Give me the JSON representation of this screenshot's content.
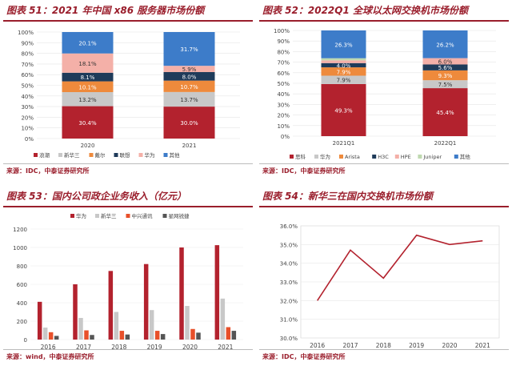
{
  "chart_data": [
    {
      "type": "bar",
      "stacked": true,
      "title": "图表 51：2021 年中国 x86 服务器市场份额",
      "categories": [
        "2020",
        "2021"
      ],
      "series": [
        {
          "name": "浪潮",
          "color": "#b3222e",
          "values": [
            30.4,
            30.0
          ],
          "labels": [
            "30.4%",
            "30.0%"
          ]
        },
        {
          "name": "新华三",
          "color": "#c8c8c8",
          "values": [
            13.2,
            13.7
          ],
          "labels": [
            "13.2%",
            "13.7%"
          ]
        },
        {
          "name": "戴尔",
          "color": "#ee8a3c",
          "values": [
            10.1,
            10.7
          ],
          "labels": [
            "10.1%",
            "10.7%"
          ]
        },
        {
          "name": "联想",
          "color": "#1f3b5a",
          "values": [
            8.1,
            8.0
          ],
          "labels": [
            "8.1%",
            "8.0%"
          ]
        },
        {
          "name": "华为",
          "color": "#f4b0a8",
          "values": [
            18.1,
            5.9
          ],
          "labels": [
            "18.1%",
            "5.9%"
          ]
        },
        {
          "name": "其他",
          "color": "#3d7cc9",
          "values": [
            20.1,
            31.7
          ],
          "labels": [
            "20.1%",
            "31.7%"
          ]
        }
      ],
      "yticks": [
        "0%",
        "10%",
        "20%",
        "30%",
        "40%",
        "50%",
        "60%",
        "70%",
        "80%",
        "90%",
        "100%"
      ],
      "ylim": [
        0,
        100
      ],
      "legend": "bottom",
      "source": "来源：IDC，中泰证券研究所"
    },
    {
      "type": "bar",
      "stacked": true,
      "title": "图表 52：2022Q1 全球以太网交换机市场份额",
      "categories": [
        "2021Q1",
        "2022Q1"
      ],
      "series": [
        {
          "name": "思科",
          "color": "#b3222e",
          "values": [
            49.3,
            45.4
          ],
          "labels": [
            "49.3%",
            "45.4%"
          ]
        },
        {
          "name": "华为",
          "color": "#c8c8c8",
          "values": [
            7.9,
            7.5
          ],
          "labels": [
            "7.9%",
            "7.5%"
          ]
        },
        {
          "name": "Arista",
          "color": "#ee8a3c",
          "values": [
            7.9,
            9.3
          ],
          "labels": [
            "7.9%",
            "9.3%"
          ]
        },
        {
          "name": "H3C",
          "color": "#1f3b5a",
          "values": [
            4.0,
            5.6
          ],
          "labels": [
            "4.0%",
            "5.6%"
          ]
        },
        {
          "name": "HPE",
          "color": "#f4b0a8",
          "values": [
            2.6,
            6.0
          ],
          "labels": [
            "2.6%",
            "6.0%"
          ]
        },
        {
          "name": "Juniper",
          "color": "#bfd9b0",
          "values": [
            2.0,
            0.0
          ],
          "labels": [
            "2.0%",
            ""
          ]
        },
        {
          "name": "其他",
          "color": "#3d7cc9",
          "values": [
            26.3,
            26.2
          ],
          "labels": [
            "26.3%",
            "26.2%"
          ]
        }
      ],
      "yticks": [
        "0%",
        "10%",
        "20%",
        "30%",
        "40%",
        "50%",
        "60%",
        "70%",
        "80%",
        "90%",
        "100%"
      ],
      "ylim": [
        0,
        100
      ],
      "legend": "bottom",
      "source": "来源：IDC，中泰证券研究所"
    },
    {
      "type": "bar",
      "stacked": false,
      "title": "图表 53：国内公司政企业务收入（亿元）",
      "categories": [
        "2016",
        "2017",
        "2018",
        "2019",
        "2020",
        "2021"
      ],
      "series": [
        {
          "name": "华为",
          "color": "#b3222e",
          "values": [
            410,
            600,
            745,
            820,
            1000,
            1025
          ]
        },
        {
          "name": "新华三",
          "color": "#c8c8c8",
          "values": [
            130,
            235,
            300,
            320,
            365,
            445
          ]
        },
        {
          "name": "中兴通讯",
          "color": "#e8502a",
          "values": [
            80,
            100,
            95,
            95,
            115,
            135
          ]
        },
        {
          "name": "星网锐捷",
          "color": "#555555",
          "values": [
            40,
            50,
            55,
            60,
            75,
            95
          ]
        }
      ],
      "yticks": [
        "0",
        "200",
        "400",
        "600",
        "800",
        "1000",
        "1200"
      ],
      "ylim": [
        0,
        1200
      ],
      "legend": "top",
      "source": "来源：wind，中泰证券研究所"
    },
    {
      "type": "line",
      "title": "图表 54：新华三在国内交换机市场份额",
      "x": [
        "2016",
        "2017",
        "2018",
        "2019",
        "2020",
        "2021"
      ],
      "series": [
        {
          "name": "",
          "color": "#b3222e",
          "values": [
            32.0,
            34.7,
            33.2,
            35.5,
            35.0,
            35.2
          ]
        }
      ],
      "yticks": [
        "30.0%",
        "31.0%",
        "32.0%",
        "33.0%",
        "34.0%",
        "35.0%",
        "36.0%"
      ],
      "ylim": [
        30,
        36
      ],
      "source": "来源：IDC，中泰证券研究所"
    }
  ]
}
